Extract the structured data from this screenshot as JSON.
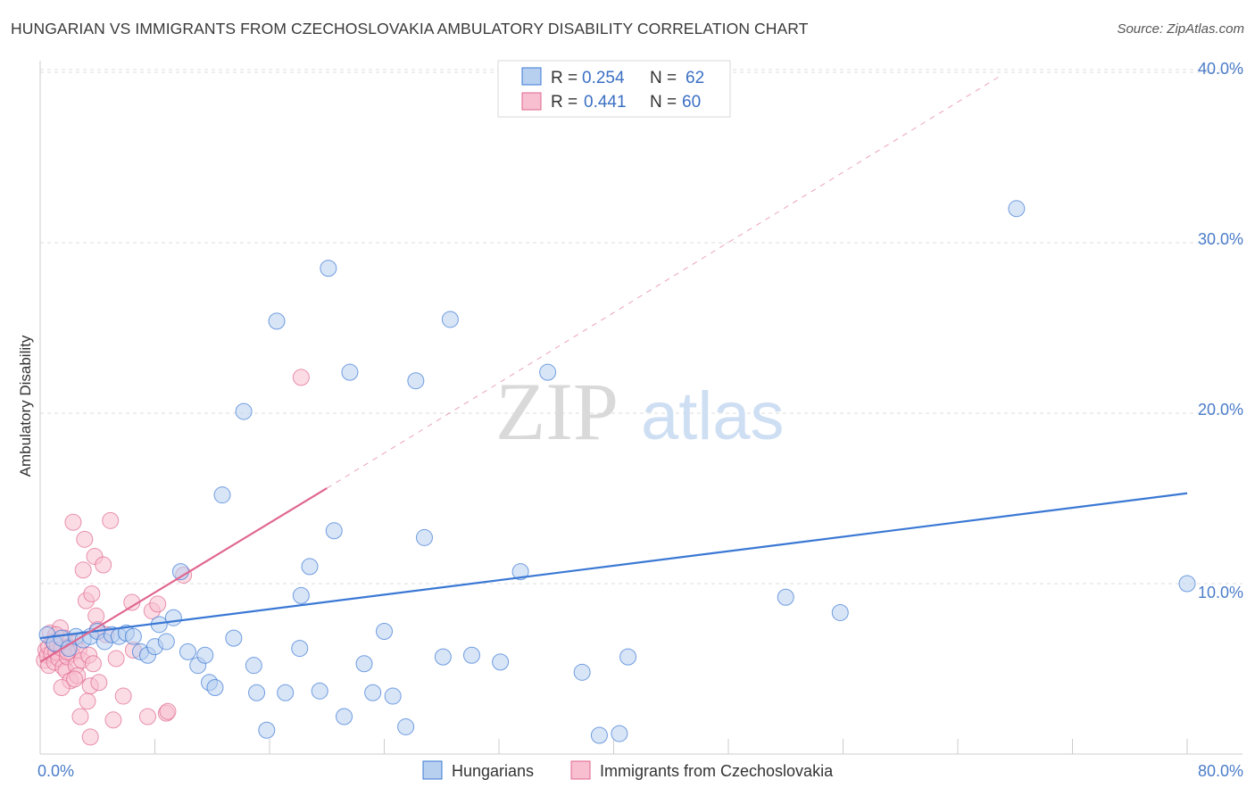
{
  "title": "HUNGARIAN VS IMMIGRANTS FROM CZECHOSLOVAKIA AMBULATORY DISABILITY CORRELATION CHART",
  "source": "Source: ZipAtlas.com",
  "watermark": {
    "zip": "ZIP",
    "atlas": "atlas"
  },
  "colors": {
    "hungarian": "#3a78d4",
    "hungarian_fill": "#b8d0f0",
    "czech": "#e0668f",
    "czech_fill": "#f7bfd0",
    "tick": "#4a7cc9",
    "grid": "#dddddd"
  },
  "legend": {
    "r_label": "R =",
    "n_label": "N =",
    "rows": [
      {
        "r": "0.254",
        "n": "62"
      },
      {
        "r": "0.441",
        "n": "60"
      }
    ]
  },
  "chart_data": {
    "type": "scatter",
    "xlabel": "",
    "ylabel": "Ambulatory Disability",
    "xlim": [
      0,
      80
    ],
    "ylim": [
      0,
      42
    ],
    "x_tick_labels": [
      {
        "v": 0,
        "label": "0.0%"
      },
      {
        "v": 80,
        "label": "80.0%"
      }
    ],
    "y_tick_labels": [
      {
        "v": 10,
        "label": "10.0%"
      },
      {
        "v": 20,
        "label": "20.0%"
      },
      {
        "v": 30,
        "label": "30.0%"
      },
      {
        "v": 40,
        "label": "40.0%"
      }
    ],
    "x_minor_ticks": [
      8,
      16,
      24,
      32,
      40,
      48,
      56,
      64,
      72,
      80
    ],
    "series": [
      {
        "name": "Hungarians",
        "r": 0.254,
        "n": 62,
        "trend": {
          "x0": 0,
          "y0": 6.8,
          "x1": 80,
          "y1": 15.3
        },
        "points": [
          [
            0.5,
            7.0
          ],
          [
            1.0,
            6.5
          ],
          [
            1.5,
            6.8
          ],
          [
            2.0,
            6.2
          ],
          [
            2.5,
            6.9
          ],
          [
            3.0,
            6.7
          ],
          [
            3.5,
            6.9
          ],
          [
            4.0,
            7.2
          ],
          [
            4.5,
            6.6
          ],
          [
            5.0,
            7.0
          ],
          [
            5.5,
            6.9
          ],
          [
            6.0,
            7.1
          ],
          [
            6.5,
            6.9
          ],
          [
            7.0,
            6.0
          ],
          [
            7.5,
            5.8
          ],
          [
            8.0,
            6.3
          ],
          [
            8.3,
            7.6
          ],
          [
            8.8,
            6.6
          ],
          [
            9.3,
            8.0
          ],
          [
            9.8,
            10.7
          ],
          [
            10.3,
            6.0
          ],
          [
            11.0,
            5.2
          ],
          [
            11.5,
            5.8
          ],
          [
            11.8,
            4.2
          ],
          [
            12.2,
            3.9
          ],
          [
            12.7,
            15.2
          ],
          [
            13.5,
            6.8
          ],
          [
            14.2,
            20.1
          ],
          [
            14.9,
            5.2
          ],
          [
            15.1,
            3.6
          ],
          [
            15.8,
            1.4
          ],
          [
            16.5,
            25.4
          ],
          [
            17.1,
            3.6
          ],
          [
            18.1,
            6.2
          ],
          [
            18.2,
            9.3
          ],
          [
            18.8,
            11.0
          ],
          [
            19.5,
            3.7
          ],
          [
            20.1,
            28.5
          ],
          [
            20.5,
            13.1
          ],
          [
            21.2,
            2.2
          ],
          [
            21.6,
            22.4
          ],
          [
            22.6,
            5.3
          ],
          [
            23.2,
            3.6
          ],
          [
            24.0,
            7.2
          ],
          [
            24.6,
            3.4
          ],
          [
            25.5,
            1.6
          ],
          [
            26.2,
            21.9
          ],
          [
            26.8,
            12.7
          ],
          [
            28.1,
            5.7
          ],
          [
            28.6,
            25.5
          ],
          [
            30.1,
            5.8
          ],
          [
            32.1,
            5.4
          ],
          [
            33.5,
            10.7
          ],
          [
            35.4,
            22.4
          ],
          [
            37.8,
            4.8
          ],
          [
            39.0,
            1.1
          ],
          [
            40.4,
            1.2
          ],
          [
            41.0,
            5.7
          ],
          [
            52.0,
            9.2
          ],
          [
            55.8,
            8.3
          ],
          [
            68.1,
            32.0
          ],
          [
            80.0,
            10.0
          ]
        ]
      },
      {
        "name": "Immigrants from Czechoslovakia",
        "r": 0.441,
        "n": 60,
        "trend": {
          "x0": 0,
          "y0": 5.4,
          "x1": 20,
          "y1": 15.6
        },
        "trend_dashed": {
          "x0": 20,
          "y0": 15.6,
          "x1": 67,
          "y1": 39.8
        },
        "points": [
          [
            0.3,
            5.5
          ],
          [
            0.4,
            6.1
          ],
          [
            0.5,
            5.8
          ],
          [
            0.6,
            6.3
          ],
          [
            0.6,
            5.2
          ],
          [
            0.7,
            7.1
          ],
          [
            0.8,
            5.9
          ],
          [
            0.9,
            6.6
          ],
          [
            1.0,
            5.4
          ],
          [
            1.1,
            6.0
          ],
          [
            1.2,
            6.4
          ],
          [
            1.3,
            5.6
          ],
          [
            1.4,
            7.4
          ],
          [
            1.5,
            6.2
          ],
          [
            1.6,
            5.1
          ],
          [
            1.7,
            6.8
          ],
          [
            1.8,
            4.9
          ],
          [
            1.9,
            5.7
          ],
          [
            2.0,
            6.3
          ],
          [
            2.1,
            4.3
          ],
          [
            2.2,
            5.9
          ],
          [
            2.3,
            13.6
          ],
          [
            2.4,
            6.5
          ],
          [
            2.5,
            5.2
          ],
          [
            2.6,
            4.6
          ],
          [
            2.7,
            6.1
          ],
          [
            2.8,
            2.2
          ],
          [
            2.9,
            5.5
          ],
          [
            3.0,
            10.8
          ],
          [
            3.1,
            12.6
          ],
          [
            3.2,
            9.0
          ],
          [
            3.3,
            3.1
          ],
          [
            3.4,
            5.8
          ],
          [
            3.5,
            4.0
          ],
          [
            3.6,
            9.4
          ],
          [
            3.7,
            5.3
          ],
          [
            3.8,
            11.6
          ],
          [
            3.9,
            8.1
          ],
          [
            4.0,
            7.3
          ],
          [
            4.1,
            4.2
          ],
          [
            4.4,
            11.1
          ],
          [
            4.6,
            7.0
          ],
          [
            4.9,
            13.7
          ],
          [
            5.1,
            2.0
          ],
          [
            5.3,
            5.6
          ],
          [
            6.5,
            6.1
          ],
          [
            6.4,
            8.9
          ],
          [
            8.8,
            2.4
          ],
          [
            5.8,
            3.4
          ],
          [
            1.5,
            3.9
          ],
          [
            2.4,
            4.4
          ],
          [
            1.1,
            7.0
          ],
          [
            1.9,
            6.0
          ],
          [
            3.5,
            1.0
          ],
          [
            7.5,
            2.2
          ],
          [
            7.8,
            8.4
          ],
          [
            8.2,
            8.8
          ],
          [
            8.9,
            2.5
          ],
          [
            10.0,
            10.5
          ],
          [
            18.2,
            22.1
          ]
        ]
      }
    ],
    "grid": true,
    "legend_position": "top-center"
  }
}
